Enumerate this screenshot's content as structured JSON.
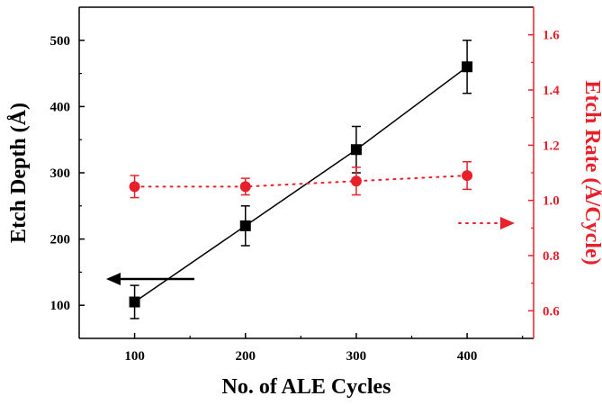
{
  "chart_data": {
    "type": "scatter",
    "xlabel": "No. of ALE Cycles",
    "ylabel_left": "Etch Depth (Å)",
    "ylabel_right": "Etch Rate (Å/Cycle)",
    "xlim": [
      50,
      460
    ],
    "ylim_left": [
      50,
      550
    ],
    "ylim_right": [
      0.5,
      1.7
    ],
    "x_ticks": [
      100,
      200,
      300,
      400
    ],
    "y_left_ticks": [
      100,
      200,
      300,
      400,
      500
    ],
    "y_right_ticks": [
      0.6,
      0.8,
      1.0,
      1.2,
      1.4,
      1.6
    ],
    "grid": false,
    "series": [
      {
        "axis": "left",
        "color": "#000000",
        "marker": "square",
        "line": "solid-fit",
        "x": [
          100,
          200,
          300,
          400
        ],
        "y": [
          105,
          220,
          335,
          460
        ],
        "error": [
          25,
          30,
          35,
          40
        ]
      },
      {
        "axis": "right",
        "color": "#e8202a",
        "marker": "circle",
        "line": "dotted",
        "x": [
          100,
          200,
          300,
          400
        ],
        "y": [
          1.05,
          1.05,
          1.07,
          1.09
        ],
        "error": [
          0.04,
          0.03,
          0.05,
          0.05
        ]
      }
    ],
    "annotations": [
      {
        "type": "arrow",
        "direction": "left",
        "points_to_axis": "left",
        "color": "#000000"
      },
      {
        "type": "arrow",
        "direction": "right",
        "points_to_axis": "right",
        "color": "#e8202a"
      }
    ]
  }
}
